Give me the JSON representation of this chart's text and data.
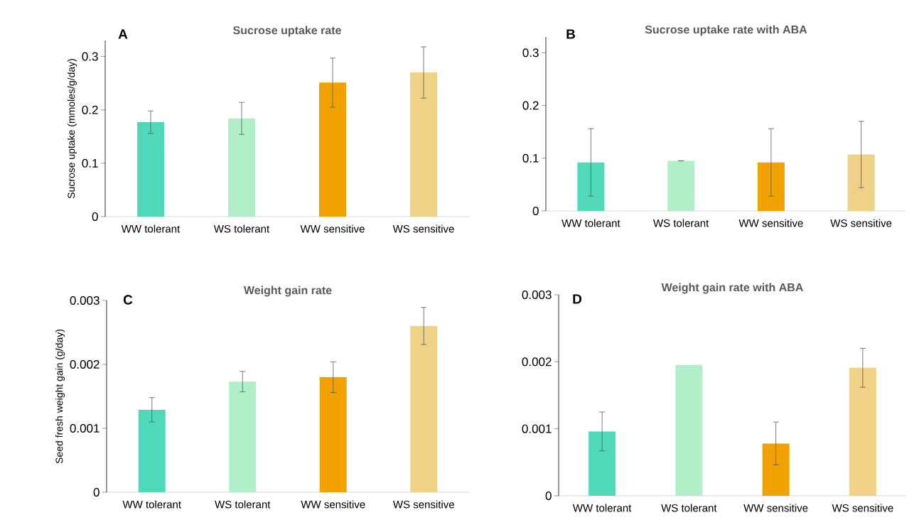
{
  "chart_data": [
    {
      "type": "bar",
      "title": "Sucrose uptake rate",
      "ylabel": "Sucrose uptake (mmoles/g/day)",
      "annotations": [
        "A"
      ],
      "categories": [
        "WW tolerant",
        "WS tolerant",
        "WW sensitive",
        "WS sensitive"
      ],
      "values": [
        0.177,
        0.184,
        0.251,
        0.27
      ],
      "errors": [
        0.021,
        0.03,
        0.046,
        0.048
      ],
      "colors": [
        "#50d8bb",
        "#b1efc8",
        "#f2a200",
        "#efd288"
      ],
      "ylim": [
        0,
        0.33
      ],
      "yticks": [
        0,
        0.1,
        0.2,
        0.3
      ]
    },
    {
      "type": "bar",
      "title": "Sucrose uptake rate with ABA",
      "annotations": [
        "B"
      ],
      "categories": [
        "WW tolerant",
        "WS tolerant",
        "WW sensitive",
        "WS sensitive"
      ],
      "values": [
        0.092,
        0.095,
        0.092,
        0.107
      ],
      "errors": [
        0.064,
        0,
        0.064,
        0.063
      ],
      "colors": [
        "#50d8bb",
        "#b1efc8",
        "#f2a200",
        "#efd288"
      ],
      "ylim": [
        0,
        0.33
      ],
      "yticks": [
        0,
        0.1,
        0.2,
        0.3
      ]
    },
    {
      "type": "bar",
      "title": "Weight gain rate",
      "ylabel": "Seed fresh weight gain (g/day)",
      "annotations": [
        "C"
      ],
      "categories": [
        "WW tolerant",
        "WS tolerant",
        "WW sensitive",
        "WS sensitive"
      ],
      "values": [
        0.00129,
        0.00173,
        0.0018,
        0.0026
      ],
      "errors": [
        0.00019,
        0.00016,
        0.00024,
        0.00029
      ],
      "colors": [
        "#50d8bb",
        "#b1efc8",
        "#f2a200",
        "#efd288"
      ],
      "ylim": [
        0,
        0.003
      ],
      "yticks": [
        0,
        0.001,
        0.002,
        0.003
      ]
    },
    {
      "type": "bar",
      "title": "Weight gain rate with ABA",
      "annotations": [
        "D"
      ],
      "categories": [
        "WW tolerant",
        "WS tolerant",
        "WW sensitive",
        "WS sensitive"
      ],
      "values": [
        0.00096,
        0.00195,
        0.00078,
        0.00191
      ],
      "errors": [
        0.00029,
        null,
        0.00032,
        0.00029
      ],
      "colors": [
        "#50d8bb",
        "#b1efc8",
        "#f2a200",
        "#efd288"
      ],
      "ylim": [
        0,
        0.003
      ],
      "yticks": [
        0,
        0.001,
        0.002,
        0.003
      ]
    }
  ]
}
